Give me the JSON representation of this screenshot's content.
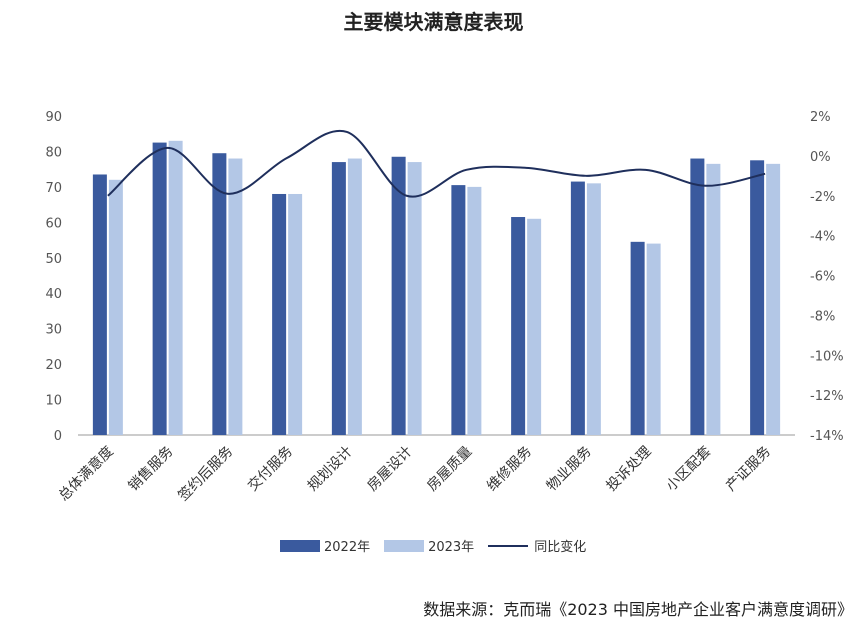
{
  "title": "主要模块满意度表现",
  "source": "数据来源：克而瑞《2023 中国房地产企业客户满意度调研》",
  "colors": {
    "s2022": "#3A5A9E",
    "s2023": "#B3C7E6",
    "line": "#1F2F5C",
    "axis": "#999999"
  },
  "legend": {
    "s2022": "2022年",
    "s2023": "2023年",
    "line": "同比变化"
  },
  "chart_data": {
    "type": "bar",
    "title": "主要模块满意度表现",
    "categories": [
      "总体满意度",
      "销售服务",
      "签约后服务",
      "交付服务",
      "规划设计",
      "房屋设计",
      "房屋质量",
      "维修服务",
      "物业服务",
      "投诉处理",
      "小区配套",
      "产证服务"
    ],
    "series": [
      {
        "name": "2022年",
        "type": "bar",
        "axis": "left",
        "values": [
          73.5,
          82.5,
          79.5,
          68,
          77,
          78.5,
          70.5,
          61.5,
          71.5,
          54.5,
          78,
          77.5
        ]
      },
      {
        "name": "2023年",
        "type": "bar",
        "axis": "left",
        "values": [
          72,
          83,
          78,
          68,
          78,
          77,
          70,
          61,
          71,
          54,
          76.5,
          76.5
        ]
      },
      {
        "name": "同比变化",
        "type": "line",
        "axis": "right",
        "values": [
          -2.0,
          0.4,
          -1.9,
          -0.1,
          1.2,
          -2.0,
          -0.7,
          -0.6,
          -1.0,
          -0.7,
          -1.5,
          -0.9
        ]
      }
    ],
    "y_left": {
      "ticks": [
        "90",
        "80",
        "70",
        "60",
        "50",
        "40",
        "30",
        "20",
        "10",
        "0"
      ],
      "ylim": [
        0,
        90
      ]
    },
    "y_right": {
      "ticks": [
        "2%",
        "0%",
        "-2%",
        "-4%",
        "-6%",
        "-8%",
        "-10%",
        "-12%",
        "-14%"
      ],
      "ylim": [
        -14,
        2
      ]
    },
    "grid": false,
    "legend_position": "bottom"
  }
}
